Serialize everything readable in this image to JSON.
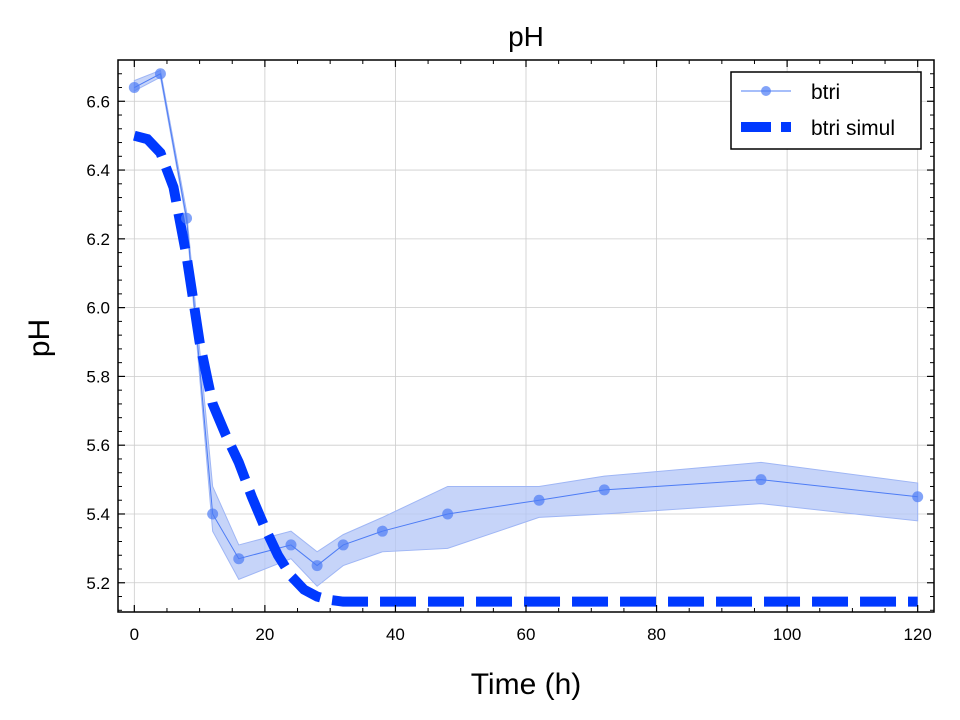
{
  "chart_data": {
    "type": "line",
    "title": "pH",
    "xlabel": "Time (h)",
    "ylabel": "pH",
    "xlim": [
      -2.5,
      122.5
    ],
    "ylim": [
      5.115,
      6.72
    ],
    "xticks": [
      0,
      20,
      40,
      60,
      80,
      100,
      120
    ],
    "yticks": [
      5.2,
      5.4,
      5.6,
      5.8,
      6.0,
      6.2,
      6.4,
      6.6
    ],
    "xtick_labels": [
      "0",
      "20",
      "40",
      "60",
      "80",
      "100",
      "120"
    ],
    "ytick_labels": [
      "5.2",
      "5.4",
      "5.6",
      "5.8",
      "6.0",
      "6.2",
      "6.4",
      "6.6"
    ],
    "grid": true,
    "legend_position": "top-right",
    "colors": {
      "measured": "#4d7cf5",
      "band": "#b3c6f7",
      "simul": "#0039ff"
    },
    "series": [
      {
        "name": "btri",
        "style": "line-with-markers",
        "x": [
          0,
          4,
          8,
          12,
          16,
          24,
          28,
          32,
          38,
          48,
          62,
          72,
          96,
          120
        ],
        "y": [
          6.64,
          6.68,
          6.26,
          5.4,
          5.27,
          5.31,
          5.25,
          5.31,
          5.35,
          5.4,
          5.44,
          5.47,
          5.5,
          5.45
        ],
        "y_lower": [
          6.63,
          6.67,
          6.25,
          5.35,
          5.21,
          5.27,
          5.19,
          5.25,
          5.29,
          5.3,
          5.39,
          5.4,
          5.43,
          5.38
        ],
        "y_upper": [
          6.66,
          6.69,
          6.28,
          5.48,
          5.31,
          5.35,
          5.29,
          5.34,
          5.39,
          5.48,
          5.48,
          5.51,
          5.55,
          5.49
        ]
      },
      {
        "name": "btri simul",
        "style": "dashed-thick",
        "x": [
          0,
          2,
          4,
          6,
          8,
          10,
          12,
          14,
          16,
          18,
          20,
          22,
          24,
          26,
          28,
          30,
          32,
          36,
          40,
          60,
          80,
          100,
          120
        ],
        "y": [
          6.5,
          6.49,
          6.45,
          6.35,
          6.15,
          5.9,
          5.72,
          5.63,
          5.55,
          5.45,
          5.36,
          5.28,
          5.22,
          5.18,
          5.16,
          5.15,
          5.145,
          5.145,
          5.145,
          5.145,
          5.145,
          5.145,
          5.145
        ]
      }
    ]
  }
}
